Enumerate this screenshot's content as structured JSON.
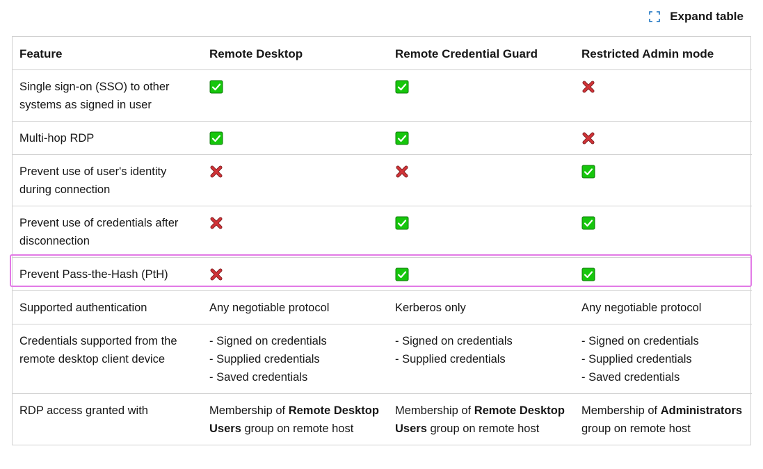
{
  "toolbar": {
    "expand_label": "Expand table",
    "expand_icon": "expand-icon"
  },
  "table": {
    "headers": [
      "Feature",
      "Remote Desktop",
      "Remote Credential Guard",
      "Restricted Admin mode"
    ],
    "rows": [
      {
        "feature": "Single sign-on (SSO) to other systems as signed in user",
        "values": [
          "yes",
          "yes",
          "no"
        ]
      },
      {
        "feature": "Multi-hop RDP",
        "values": [
          "yes",
          "yes",
          "no"
        ]
      },
      {
        "feature": "Prevent use of user's identity during connection",
        "values": [
          "no",
          "no",
          "yes"
        ]
      },
      {
        "feature": "Prevent use of credentials after disconnection",
        "values": [
          "no",
          "yes",
          "yes"
        ]
      },
      {
        "feature": "Prevent Pass-the-Hash (PtH)",
        "values": [
          "no",
          "yes",
          "yes"
        ],
        "highlighted": true
      },
      {
        "feature": "Supported authentication",
        "values": [
          "Any negotiable protocol",
          "Kerberos only",
          "Any negotiable protocol"
        ]
      },
      {
        "feature": "Credentials supported from the remote desktop client device",
        "values": [
          "- Signed on credentials\n- Supplied credentials\n- Saved credentials",
          "- Signed on credentials\n- Supplied credentials",
          "- Signed on credentials\n- Supplied credentials\n- Saved credentials"
        ]
      },
      {
        "feature": "RDP access granted with",
        "rich": [
          {
            "pre": "Membership of ",
            "bold": "Remote Desktop Users",
            "post": " group on remote host"
          },
          {
            "pre": "Membership of ",
            "bold": "Remote Desktop Users",
            "post": " group on remote host"
          },
          {
            "pre": "Membership of ",
            "bold": "Administrators",
            "post": " group on remote host"
          }
        ]
      }
    ]
  },
  "icons": {
    "yes": "check-icon",
    "no": "cross-icon"
  },
  "colors": {
    "check_bg": "#16c60c",
    "check_border": "#0e7a08",
    "cross": "#d13438",
    "highlight": "#e27ae6"
  }
}
